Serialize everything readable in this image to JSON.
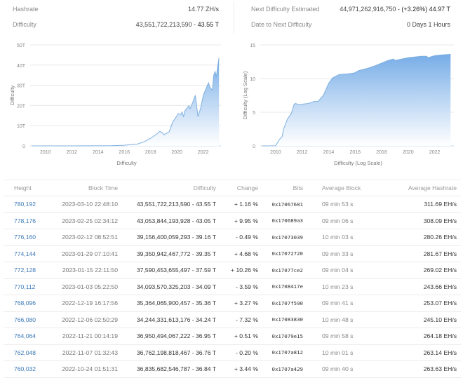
{
  "stats": {
    "left": [
      {
        "label": "Hashrate",
        "value": "14.77 ZH/s"
      },
      {
        "label": "Difficulty",
        "value_main": "43,551,722,213,590 - ",
        "value_bold": "43.55 T"
      }
    ],
    "right": [
      {
        "label": "Next Difficulty Estimated",
        "value_main": "44,971,262,916,750 - ",
        "value_bold": "(+3.26%) 44.97 T"
      },
      {
        "label": "Date to Next Difficulty",
        "value": "0 Days 1 Hours"
      }
    ]
  },
  "colors": {
    "area_top": "#6fa8e6",
    "area_bottom": "#ffffff",
    "line": "#7eb0e0",
    "link": "#3d7ab8",
    "positive": "#3c9a3c",
    "negative": "#d9413f",
    "grid": "#e8e8e8"
  },
  "chart_data": [
    {
      "type": "area",
      "title": "",
      "xlabel": "Difficulty",
      "ylabel": "Difficulty",
      "x_ticks": [
        "2010",
        "2012",
        "2014",
        "2016",
        "2018",
        "2020",
        "2022"
      ],
      "y_ticks": [
        "0",
        "10T",
        "20T",
        "30T",
        "40T",
        "50T"
      ],
      "ylim": [
        0,
        50
      ],
      "y_unit": "T",
      "grid": true,
      "legend": "none",
      "x": [
        2009.0,
        2012.0,
        2015.0,
        2016.0,
        2017.0,
        2017.5,
        2018.0,
        2018.4,
        2018.7,
        2018.9,
        2019.0,
        2019.4,
        2019.7,
        2019.9,
        2020.1,
        2020.3,
        2020.4,
        2020.5,
        2020.6,
        2020.9,
        2021.0,
        2021.2,
        2021.4,
        2021.5,
        2021.6,
        2021.8,
        2022.0,
        2022.2,
        2022.4,
        2022.5,
        2022.7,
        2022.8,
        2022.9,
        2023.0,
        2023.1,
        2023.2
      ],
      "values": [
        0,
        0,
        0.1,
        0.3,
        0.9,
        2.0,
        3.8,
        5.6,
        7.2,
        6.5,
        5.5,
        6.9,
        12.0,
        13.9,
        16.0,
        15.5,
        16.8,
        14.3,
        17.3,
        19.9,
        18.4,
        21.5,
        25.0,
        20.0,
        14.4,
        18.5,
        24.9,
        28.2,
        31.2,
        29.1,
        27.5,
        35.0,
        36.8,
        34.1,
        39.4,
        43.55
      ]
    },
    {
      "type": "area",
      "title": "",
      "xlabel": "Difficulty (Log Scale)",
      "ylabel": "Difficulty (Log Scale)",
      "x_ticks": [
        "2010",
        "2012",
        "2014",
        "2016",
        "2018",
        "2020",
        "2022"
      ],
      "y_ticks": [
        "0",
        "5",
        "10",
        "15"
      ],
      "ylim": [
        0,
        15
      ],
      "grid": true,
      "legend": "none",
      "x": [
        2009.0,
        2010.0,
        2010.3,
        2010.5,
        2010.6,
        2010.9,
        2011.2,
        2011.4,
        2011.5,
        2011.8,
        2012.0,
        2012.5,
        2012.9,
        2013.2,
        2013.6,
        2014.0,
        2014.3,
        2014.8,
        2015.5,
        2015.9,
        2016.3,
        2016.9,
        2017.5,
        2018.0,
        2018.5,
        2018.9,
        2019.0,
        2019.5,
        2020.0,
        2020.5,
        2021.0,
        2021.4,
        2021.5,
        2022.0,
        2022.5,
        2023.2
      ],
      "values": [
        0,
        0,
        1.0,
        1.4,
        2.5,
        4.0,
        4.9,
        6.2,
        6.3,
        6.1,
        6.2,
        6.3,
        6.6,
        6.6,
        7.5,
        9.3,
        10.1,
        10.6,
        10.7,
        10.8,
        11.2,
        11.5,
        11.9,
        12.3,
        12.7,
        12.9,
        12.7,
        12.9,
        13.1,
        13.2,
        13.3,
        13.3,
        13.1,
        13.4,
        13.5,
        13.6
      ]
    }
  ],
  "table": {
    "headers": {
      "height": "Height",
      "block_time": "Block Time",
      "difficulty": "Difficulty",
      "change": "Change",
      "bits": "Bits",
      "average_block": "Average Block",
      "average_hashrate": "Average Hashrate"
    },
    "rows": [
      {
        "height": "780,192",
        "block_time": "2023-03-10 22:48:10",
        "difficulty": "43,551,722,213,590 - 43.55 T",
        "change": "+ 1.16 %",
        "dir": "pos",
        "bits": "0x17067681",
        "average_block": "09 min 53 s",
        "average_hashrate": "311.69 EH/s"
      },
      {
        "height": "778,176",
        "block_time": "2023-02-25 02:34:12",
        "difficulty": "43,053,844,193,928 - 43.05 T",
        "change": "+ 9.95 %",
        "dir": "pos",
        "bits": "0x170689a3",
        "average_block": "09 min 06 s",
        "average_hashrate": "308.09 EH/s"
      },
      {
        "height": "776,160",
        "block_time": "2023-02-12 08:52:51",
        "difficulty": "39,156,400,059,293 - 39.16 T",
        "change": "- 0.49 %",
        "dir": "neg",
        "bits": "0x17073039",
        "average_block": "10 min 03 s",
        "average_hashrate": "280.26 EH/s"
      },
      {
        "height": "774,144",
        "block_time": "2023-01-29 07:10:41",
        "difficulty": "39,350,942,467,772 - 39.35 T",
        "change": "+ 4.68 %",
        "dir": "pos",
        "bits": "0x17072720",
        "average_block": "09 min 33 s",
        "average_hashrate": "281.67 EH/s"
      },
      {
        "height": "772,128",
        "block_time": "2023-01-15 22:11:50",
        "difficulty": "37,590,453,655,497 - 37.59 T",
        "change": "+ 10.26 %",
        "dir": "pos",
        "bits": "0x17077ce2",
        "average_block": "09 min 04 s",
        "average_hashrate": "269.02 EH/s"
      },
      {
        "height": "770,112",
        "block_time": "2023-01-03 05:22:50",
        "difficulty": "34,093,570,325,203 - 34.09 T",
        "change": "- 3.59 %",
        "dir": "neg",
        "bits": "0x1708417e",
        "average_block": "10 min 23 s",
        "average_hashrate": "243.66 EH/s"
      },
      {
        "height": "768,096",
        "block_time": "2022-12-19 16:17:56",
        "difficulty": "35,364,065,900,457 - 35.36 T",
        "change": "+ 3.27 %",
        "dir": "pos",
        "bits": "0x1707f590",
        "average_block": "09 min 41 s",
        "average_hashrate": "253.07 EH/s"
      },
      {
        "height": "766,080",
        "block_time": "2022-12-06 02:50:29",
        "difficulty": "34,244,331,613,176 - 34.24 T",
        "change": "- 7.32 %",
        "dir": "neg",
        "bits": "0x17083830",
        "average_block": "10 min 48 s",
        "average_hashrate": "245.10 EH/s"
      },
      {
        "height": "764,064",
        "block_time": "2022-11-21 00:14:19",
        "difficulty": "36,950,494,067,222 - 36.95 T",
        "change": "+ 0.51 %",
        "dir": "pos",
        "bits": "0x17079e15",
        "average_block": "09 min 58 s",
        "average_hashrate": "264.18 EH/s"
      },
      {
        "height": "762,048",
        "block_time": "2022-11-07 01:32:43",
        "difficulty": "36,762,198,818,467 - 36.76 T",
        "change": "- 0.20 %",
        "dir": "neg",
        "bits": "0x1707a812",
        "average_block": "10 min 01 s",
        "average_hashrate": "263.14 EH/s"
      },
      {
        "height": "760,032",
        "block_time": "2022-10-24 01:51:31",
        "difficulty": "36,835,682,546,787 - 36.84 T",
        "change": "+ 3.44 %",
        "dir": "pos",
        "bits": "0x1707a429",
        "average_block": "09 min 40 s",
        "average_hashrate": "263.63 EH/s"
      }
    ]
  }
}
